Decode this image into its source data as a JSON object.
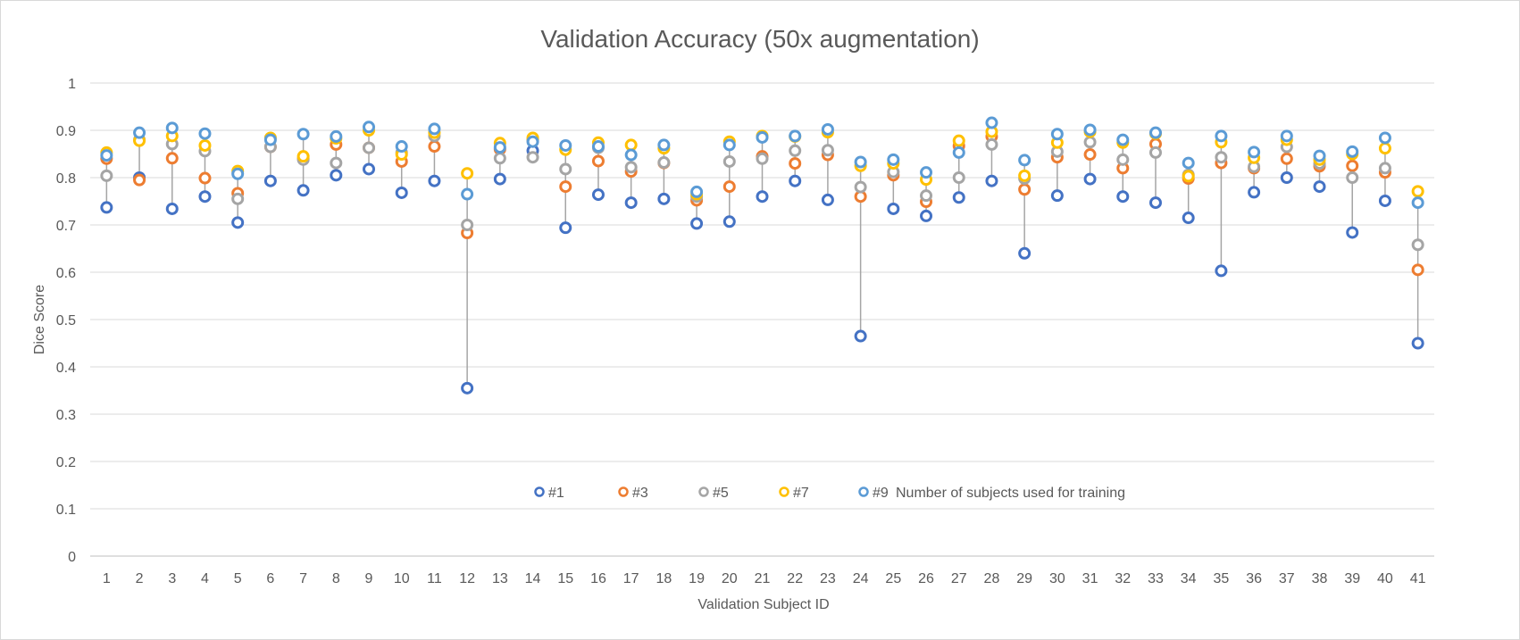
{
  "chart_data": {
    "type": "scatter",
    "title": "Validation Accuracy (50x augmentation)",
    "xlabel": "Validation Subject ID",
    "ylabel": "Dice Score",
    "ylim": [
      0,
      1
    ],
    "ytick_labels": [
      "0",
      "0.1",
      "0.2",
      "0.3",
      "0.4",
      "0.5",
      "0.6",
      "0.7",
      "0.8",
      "0.9",
      "1"
    ],
    "categories": [
      "1",
      "2",
      "3",
      "4",
      "5",
      "6",
      "7",
      "8",
      "9",
      "10",
      "11",
      "12",
      "13",
      "14",
      "15",
      "16",
      "17",
      "18",
      "19",
      "20",
      "21",
      "22",
      "23",
      "24",
      "25",
      "26",
      "27",
      "28",
      "29",
      "30",
      "31",
      "32",
      "33",
      "34",
      "35",
      "36",
      "37",
      "38",
      "39",
      "40",
      "41"
    ],
    "grid": true,
    "legend_position": "bottom-center",
    "legend_title": "Number of subjects used for training",
    "series": [
      {
        "name": "#1",
        "color": "#4472C4",
        "values": [
          0.737,
          0.8,
          0.734,
          0.76,
          0.705,
          0.793,
          0.773,
          0.805,
          0.818,
          0.768,
          0.793,
          0.355,
          0.797,
          0.857,
          0.694,
          0.764,
          0.747,
          0.755,
          0.703,
          0.707,
          0.76,
          0.793,
          0.753,
          0.465,
          0.734,
          0.719,
          0.758,
          0.793,
          0.64,
          0.762,
          0.797,
          0.76,
          0.747,
          0.715,
          0.603,
          0.769,
          0.8,
          0.781,
          0.684,
          0.751,
          0.45
        ]
      },
      {
        "name": "#3",
        "color": "#ED7D31",
        "values": [
          0.84,
          0.795,
          0.841,
          0.799,
          0.767,
          0.865,
          0.84,
          0.87,
          0.863,
          0.834,
          0.866,
          0.683,
          0.86,
          0.88,
          0.781,
          0.835,
          0.813,
          0.831,
          0.752,
          0.781,
          0.845,
          0.83,
          0.848,
          0.76,
          0.805,
          0.749,
          0.867,
          0.887,
          0.775,
          0.843,
          0.849,
          0.82,
          0.871,
          0.798,
          0.831,
          0.82,
          0.84,
          0.824,
          0.825,
          0.811,
          0.605
        ]
      },
      {
        "name": "#5",
        "color": "#A5A5A5",
        "values": [
          0.804,
          0.88,
          0.871,
          0.856,
          0.755,
          0.865,
          0.838,
          0.831,
          0.863,
          0.853,
          0.888,
          0.7,
          0.841,
          0.843,
          0.818,
          0.863,
          0.822,
          0.832,
          0.76,
          0.834,
          0.84,
          0.857,
          0.858,
          0.78,
          0.812,
          0.762,
          0.8,
          0.87,
          0.798,
          0.855,
          0.875,
          0.838,
          0.853,
          0.806,
          0.843,
          0.823,
          0.865,
          0.83,
          0.8,
          0.82,
          0.658
        ]
      },
      {
        "name": "#7",
        "color": "#FFC000",
        "values": [
          0.853,
          0.878,
          0.888,
          0.868,
          0.814,
          0.884,
          0.845,
          0.883,
          0.9,
          0.849,
          0.895,
          0.809,
          0.873,
          0.884,
          0.859,
          0.874,
          0.869,
          0.862,
          0.765,
          0.876,
          0.888,
          0.887,
          0.896,
          0.825,
          0.83,
          0.796,
          0.878,
          0.897,
          0.804,
          0.874,
          0.897,
          0.874,
          0.893,
          0.803,
          0.875,
          0.842,
          0.88,
          0.838,
          0.85,
          0.862,
          0.771
        ]
      },
      {
        "name": "#9",
        "color": "#5B9BD5",
        "values": [
          0.847,
          0.895,
          0.905,
          0.893,
          0.808,
          0.88,
          0.892,
          0.887,
          0.907,
          0.866,
          0.903,
          0.765,
          0.864,
          0.876,
          0.868,
          0.866,
          0.848,
          0.869,
          0.77,
          0.869,
          0.885,
          0.888,
          0.902,
          0.833,
          0.838,
          0.811,
          0.853,
          0.916,
          0.837,
          0.892,
          0.901,
          0.88,
          0.895,
          0.831,
          0.888,
          0.854,
          0.888,
          0.846,
          0.855,
          0.884,
          0.747
        ]
      }
    ]
  }
}
